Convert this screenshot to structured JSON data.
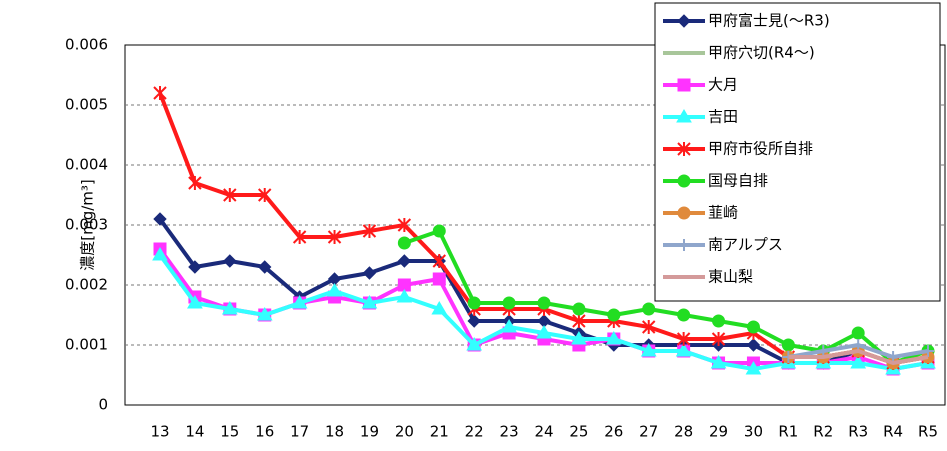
{
  "chart_data": {
    "type": "line",
    "y_label": "濃度[mg/m³]",
    "categories": [
      "13",
      "14",
      "15",
      "16",
      "17",
      "18",
      "19",
      "20",
      "21",
      "22",
      "23",
      "24",
      "25",
      "26",
      "27",
      "28",
      "29",
      "30",
      "R1",
      "R2",
      "R3",
      "R4",
      "R5"
    ],
    "ylim": [
      0,
      0.006
    ],
    "yticks": [
      0,
      0.001,
      0.002,
      0.003,
      0.004,
      0.005,
      0.006
    ],
    "grid": true,
    "series": [
      {
        "name": "甲府富士見(～R3)",
        "color": "#1a2a7a",
        "marker": "diamond",
        "values": [
          0.0031,
          0.0023,
          0.0024,
          0.0023,
          0.0018,
          0.0021,
          0.0022,
          0.0024,
          0.0024,
          0.0014,
          0.0014,
          0.0014,
          0.0012,
          0.001,
          0.001,
          0.001,
          0.001,
          0.001,
          0.0007,
          0.0007,
          0.0009,
          null,
          null
        ]
      },
      {
        "name": "甲府穴切(R4～)",
        "color": "#a8c69a",
        "marker": "none",
        "values": [
          null,
          null,
          null,
          null,
          null,
          null,
          null,
          null,
          null,
          null,
          null,
          null,
          null,
          null,
          null,
          null,
          null,
          null,
          null,
          null,
          null,
          0.0007,
          0.0008
        ]
      },
      {
        "name": "大月",
        "color": "#ff33ff",
        "marker": "square",
        "values": [
          0.0026,
          0.0018,
          0.0016,
          0.0015,
          0.0017,
          0.0018,
          0.0017,
          0.002,
          0.0021,
          0.001,
          0.0012,
          0.0011,
          0.001,
          0.0011,
          0.0009,
          0.0009,
          0.0007,
          0.0007,
          0.0007,
          0.0007,
          0.0008,
          0.0006,
          0.0007
        ]
      },
      {
        "name": "吉田",
        "color": "#33ffff",
        "marker": "triangle",
        "values": [
          0.0025,
          0.0017,
          0.0016,
          0.0015,
          0.0017,
          0.0019,
          0.0017,
          0.0018,
          0.0016,
          0.001,
          0.0013,
          0.0012,
          0.0011,
          0.0011,
          0.0009,
          0.0009,
          0.0007,
          0.0006,
          0.0007,
          0.0007,
          0.0007,
          0.0006,
          0.0007
        ]
      },
      {
        "name": "甲府市役所自排",
        "color": "#ff1a1a",
        "marker": "asterisk",
        "values": [
          0.0052,
          0.0037,
          0.0035,
          0.0035,
          0.0028,
          0.0028,
          0.0029,
          0.003,
          0.0024,
          0.0016,
          0.0016,
          0.0016,
          0.0014,
          0.0014,
          0.0013,
          0.0011,
          0.0011,
          0.0012,
          0.0008,
          0.0008,
          0.0009,
          0.0007,
          0.0008
        ]
      },
      {
        "name": "国母自排",
        "color": "#22dd22",
        "marker": "circle",
        "values": [
          null,
          null,
          null,
          null,
          null,
          null,
          null,
          0.0027,
          0.0029,
          0.0017,
          0.0017,
          0.0017,
          0.0016,
          0.0015,
          0.0016,
          0.0015,
          0.0014,
          0.0013,
          0.001,
          0.0009,
          0.0012,
          0.0007,
          0.0009
        ]
      },
      {
        "name": "韮崎",
        "color": "#e08a3c",
        "marker": "circle",
        "values": [
          null,
          null,
          null,
          null,
          null,
          null,
          null,
          null,
          null,
          null,
          null,
          null,
          null,
          null,
          null,
          null,
          null,
          null,
          0.0008,
          0.0008,
          0.0009,
          0.0007,
          0.0008
        ]
      },
      {
        "name": "南アルプス",
        "color": "#8fa6cc",
        "marker": "plus",
        "values": [
          null,
          null,
          null,
          null,
          null,
          null,
          null,
          null,
          null,
          null,
          null,
          null,
          null,
          null,
          null,
          null,
          null,
          null,
          0.0008,
          0.0009,
          0.001,
          0.0008,
          0.0009
        ]
      },
      {
        "name": "東山梨",
        "color": "#d49a9a",
        "marker": "none",
        "values": [
          null,
          null,
          null,
          null,
          null,
          null,
          null,
          null,
          null,
          null,
          null,
          null,
          null,
          null,
          null,
          null,
          null,
          null,
          0.0008,
          0.0008,
          0.0009,
          0.0007,
          0.0008
        ]
      }
    ]
  }
}
